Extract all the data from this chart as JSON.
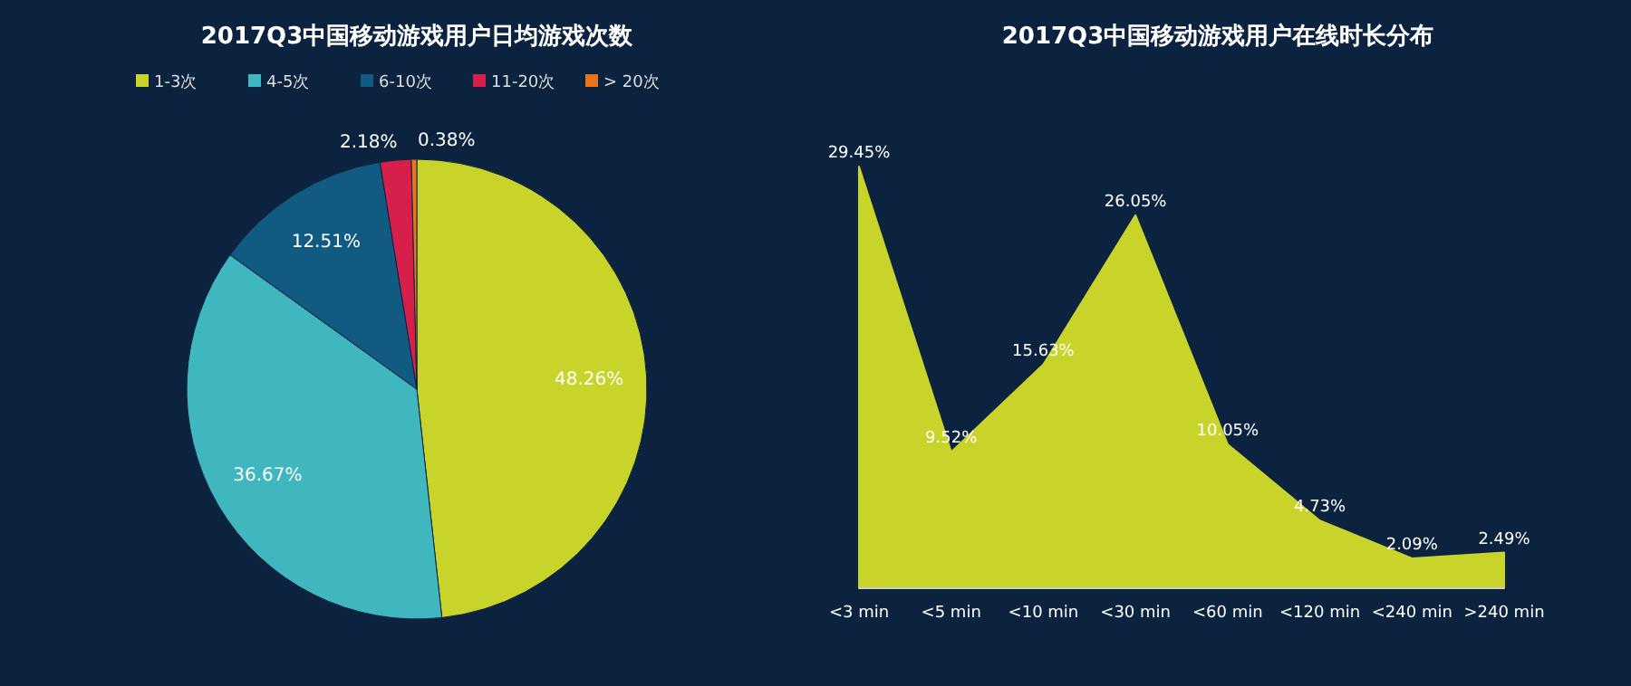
{
  "chart_data": [
    {
      "type": "pie",
      "title": "2017Q3中国移动游戏用户日均游戏次数",
      "categories": [
        "1-3次",
        "4-5次",
        "6-10次",
        "11-20次",
        "> 20次"
      ],
      "values": [
        48.26,
        36.67,
        12.51,
        2.18,
        0.38
      ],
      "colors": [
        "#c9d42b",
        "#40b7bf",
        "#115b82",
        "#d61f4b",
        "#e8741c"
      ],
      "legend": "top",
      "value_labels": [
        "48.26%",
        "36.67%",
        "12.51%",
        "2.18%",
        "0.38%"
      ]
    },
    {
      "type": "area",
      "title": "2017Q3中国移动游戏用户在线时长分布",
      "categories": [
        "<3 min",
        "<5 min",
        "<10 min",
        "<30 min",
        "<60 min",
        "<120 min",
        "<240 min",
        ">240 min"
      ],
      "values": [
        29.45,
        9.52,
        15.63,
        26.05,
        10.05,
        4.73,
        2.09,
        2.49
      ],
      "color": "#c9d42b",
      "value_labels": [
        "29.45%",
        "9.52%",
        "15.63%",
        "26.05%",
        "10.05%",
        "4.73%",
        "2.09%",
        "2.49%"
      ]
    }
  ]
}
